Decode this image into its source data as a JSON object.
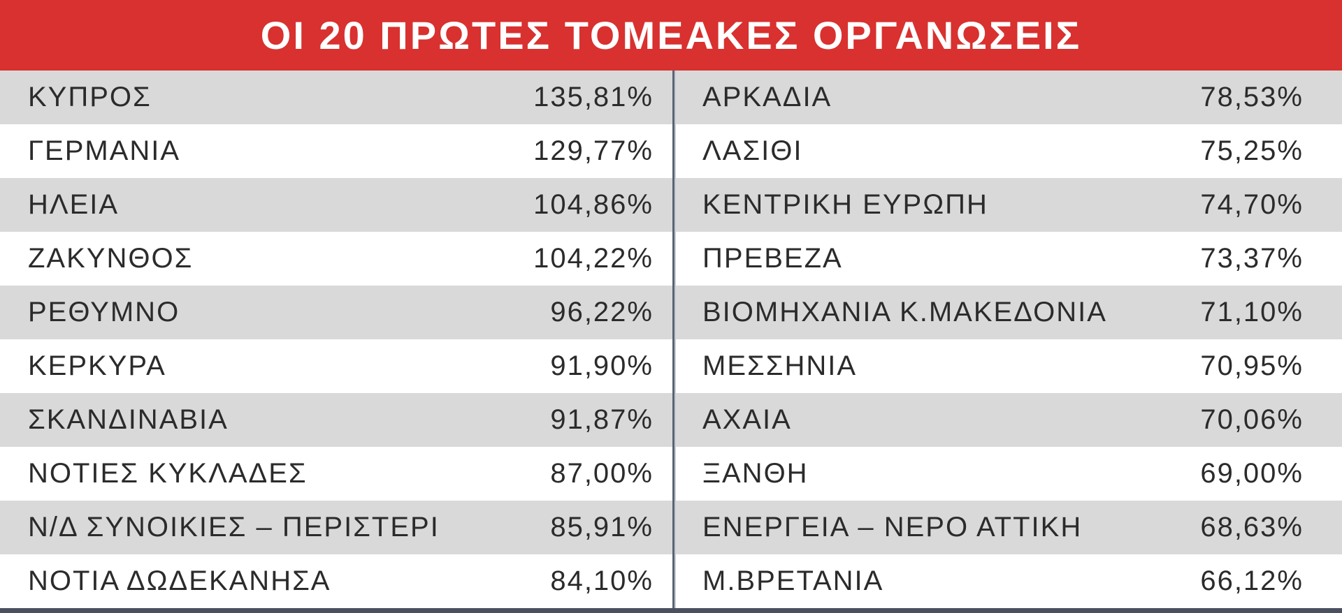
{
  "header": {
    "title": "ΟΙ 20 ΠΡΩΤΕΣ ΤΟΜΕΑΚΕΣ ΟΡΓΑΝΩΣΕΙΣ"
  },
  "table": {
    "left": [
      [
        "ΚΥΠΡΟΣ",
        "135,81%"
      ],
      [
        "ΓΕΡΜΑΝΙΑ",
        "129,77%"
      ],
      [
        "ΗΛΕΙΑ",
        "104,86%"
      ],
      [
        "ΖΑΚΥΝΘΟΣ",
        "104,22%"
      ],
      [
        "ΡΕΘΥΜΝΟ",
        "96,22%"
      ],
      [
        "ΚΕΡΚΥΡΑ",
        "91,90%"
      ],
      [
        "ΣΚΑΝΔΙΝΑΒΙΑ",
        "91,87%"
      ],
      [
        "ΝΟΤΙΕΣ ΚΥΚΛΑΔΕΣ",
        "87,00%"
      ],
      [
        "Ν/Δ ΣΥΝΟΙΚΙΕΣ – ΠΕΡΙΣΤΕΡΙ",
        "85,91%"
      ],
      [
        "ΝΟΤΙΑ ΔΩΔΕΚΑΝΗΣΑ",
        "84,10%"
      ]
    ],
    "right": [
      [
        "ΑΡΚΑΔΙΑ",
        "78,53%"
      ],
      [
        "ΛΑΣΙΘΙ",
        "75,25%"
      ],
      [
        "ΚΕΝΤΡΙΚΗ ΕΥΡΩΠΗ",
        "74,70%"
      ],
      [
        "ΠΡΕΒΕΖΑ",
        "73,37%"
      ],
      [
        "ΒΙΟΜΗΧΑΝΙΑ Κ.ΜΑΚΕΔΟΝΙΑ",
        "71,10%"
      ],
      [
        "ΜΕΣΣΗΝΙΑ",
        "70,95%"
      ],
      [
        "ΑΧΑΙΑ",
        "70,06%"
      ],
      [
        "ΞΑΝΘΗ",
        "69,00%"
      ],
      [
        "ΕΝΕΡΓΕΙΑ – ΝΕΡΟ ΑΤΤΙΚΗ",
        "68,63%"
      ],
      [
        "Μ.ΒΡΕΤΑΝΙΑ",
        "66,12%"
      ]
    ]
  }
}
